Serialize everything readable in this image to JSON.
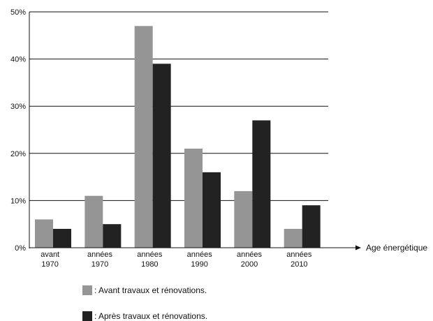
{
  "chart_data": {
    "type": "bar",
    "categories": [
      [
        "avant",
        "1970"
      ],
      [
        "années",
        "1970"
      ],
      [
        "années",
        "1980"
      ],
      [
        "années",
        "1990"
      ],
      [
        "années",
        "2000"
      ],
      [
        "années",
        "2010"
      ]
    ],
    "series": [
      {
        "name": ": Avant travaux et rénovations.",
        "color": "#959595",
        "values": [
          6,
          11,
          47,
          21,
          12,
          4
        ]
      },
      {
        "name": ": Après travaux et rénovations.",
        "color": "#222222",
        "values": [
          4,
          5,
          39,
          16,
          27,
          9
        ]
      }
    ],
    "xlabel": "Age énergétique",
    "ylabel": "",
    "ylim": [
      0,
      50
    ],
    "yticks": [
      0,
      10,
      20,
      30,
      40,
      50
    ],
    "ytick_labels": [
      "0%",
      "10%",
      "20%",
      "30%",
      "40%",
      "50%"
    ],
    "grid": true,
    "legend_position": "bottom-left"
  }
}
